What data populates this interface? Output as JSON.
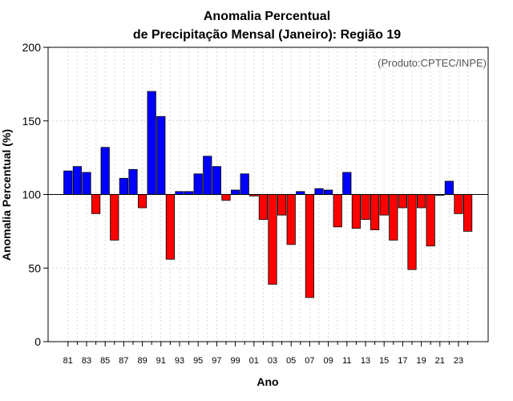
{
  "chart_data": {
    "type": "bar",
    "title_line1": "Anomalia Percentual",
    "title_line2": "de Precipitação Mensal (Janeiro): Região 19",
    "xlabel": "Ano",
    "ylabel": "Anomalia Percentual (%)",
    "credit": "(Produto:CPTEC/INPE)",
    "ylim": [
      0,
      200
    ],
    "yticks": [
      0,
      50,
      100,
      150,
      200
    ],
    "baseline": 100,
    "grid": true,
    "colors": {
      "above": "#0000ff",
      "below": "#ff0000",
      "outline": "#000000",
      "grid": "#d9d9d9"
    },
    "categories": [
      "81",
      "82",
      "83",
      "84",
      "85",
      "86",
      "87",
      "88",
      "89",
      "90",
      "91",
      "92",
      "93",
      "94",
      "95",
      "96",
      "97",
      "98",
      "99",
      "00",
      "01",
      "02",
      "03",
      "04",
      "05",
      "06",
      "07",
      "08",
      "09",
      "10",
      "11",
      "12",
      "13",
      "14",
      "15",
      "16",
      "17",
      "18",
      "19",
      "20",
      "21",
      "22",
      "23",
      "24"
    ],
    "xtick_labels": [
      "81",
      "83",
      "85",
      "87",
      "89",
      "91",
      "93",
      "95",
      "97",
      "99",
      "01",
      "03",
      "05",
      "07",
      "09",
      "11",
      "13",
      "15",
      "17",
      "19",
      "21",
      "23"
    ],
    "values": [
      116,
      119,
      115,
      87,
      132,
      69,
      111,
      117,
      91,
      170,
      153,
      56,
      102,
      102,
      114,
      126,
      119,
      96,
      103,
      114,
      99,
      83,
      39,
      86,
      66,
      102,
      30,
      104,
      103,
      78,
      115,
      77,
      83,
      76,
      86,
      69,
      91,
      49,
      91,
      65,
      100,
      109,
      87,
      75
    ]
  }
}
